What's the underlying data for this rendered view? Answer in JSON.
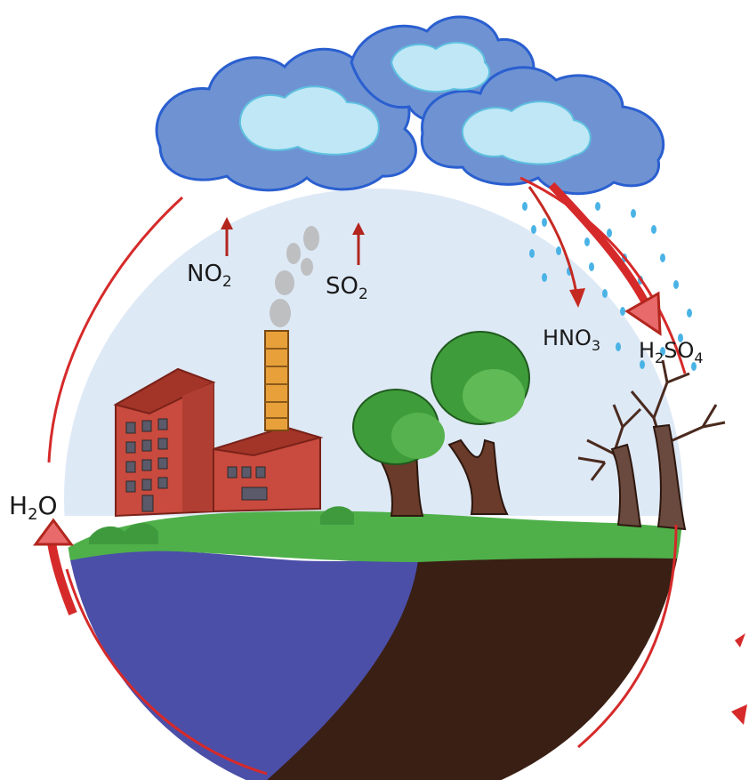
{
  "labels": {
    "no2": {
      "main": "NO",
      "sub": "2"
    },
    "so2": {
      "main": "SO",
      "sub": "2"
    },
    "hno3": {
      "main": "HNO",
      "sub": "3"
    },
    "h2so4": {
      "pre": "H",
      "sub1": "2",
      "post": "SO",
      "sub2": "4"
    },
    "h2o": {
      "pre": "H",
      "sub": "2",
      "post": "O"
    }
  },
  "colors": {
    "sky": "#cfe0f2",
    "cloud_outer": "#6f93d2",
    "cloud_inner": "#bfe7f5",
    "cloud_edge": "#2a5fd0",
    "cycle_red": "#d62a2a",
    "water": "#4b4fa8",
    "soil": "#3a1f14",
    "grass": "#4fb04a",
    "building": "#c94a3e",
    "tree_green": "#3f9c3a",
    "trunk": "#6a3b2a",
    "rain": "#4ab3e6"
  }
}
